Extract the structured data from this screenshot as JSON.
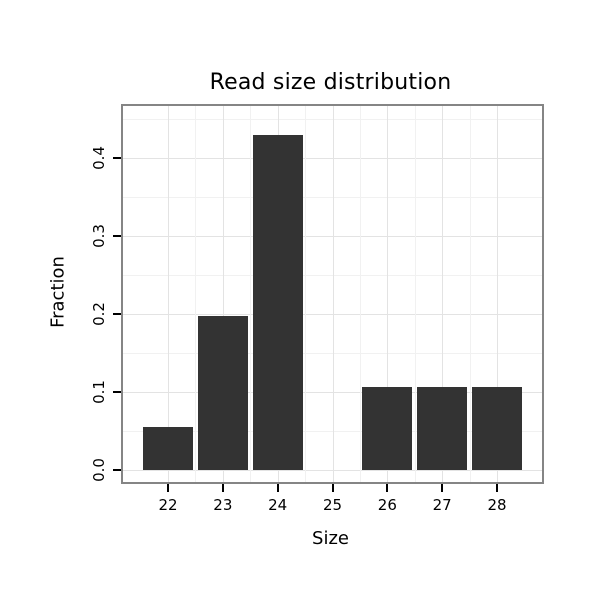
{
  "chart_data": {
    "type": "bar",
    "title": "Read size distribution",
    "xlabel": "Size",
    "ylabel": "Fraction",
    "categories": [
      "22",
      "23",
      "24",
      "25",
      "26",
      "27",
      "28"
    ],
    "values": [
      0.055,
      0.197,
      0.43,
      0,
      0.107,
      0.107,
      0.107
    ],
    "ylim": [
      0,
      0.467
    ],
    "yticks": [
      0.0,
      0.1,
      0.2,
      0.3,
      0.4
    ],
    "ytick_labels": [
      "0.0",
      "0.1",
      "0.2",
      "0.3",
      "0.4"
    ],
    "grid": true,
    "legend": "none",
    "bar_color": "#333333",
    "panel_border_color": "#858585",
    "grid_major_color": "#e3e3e3",
    "grid_minor_color": "#f1f1f1"
  }
}
